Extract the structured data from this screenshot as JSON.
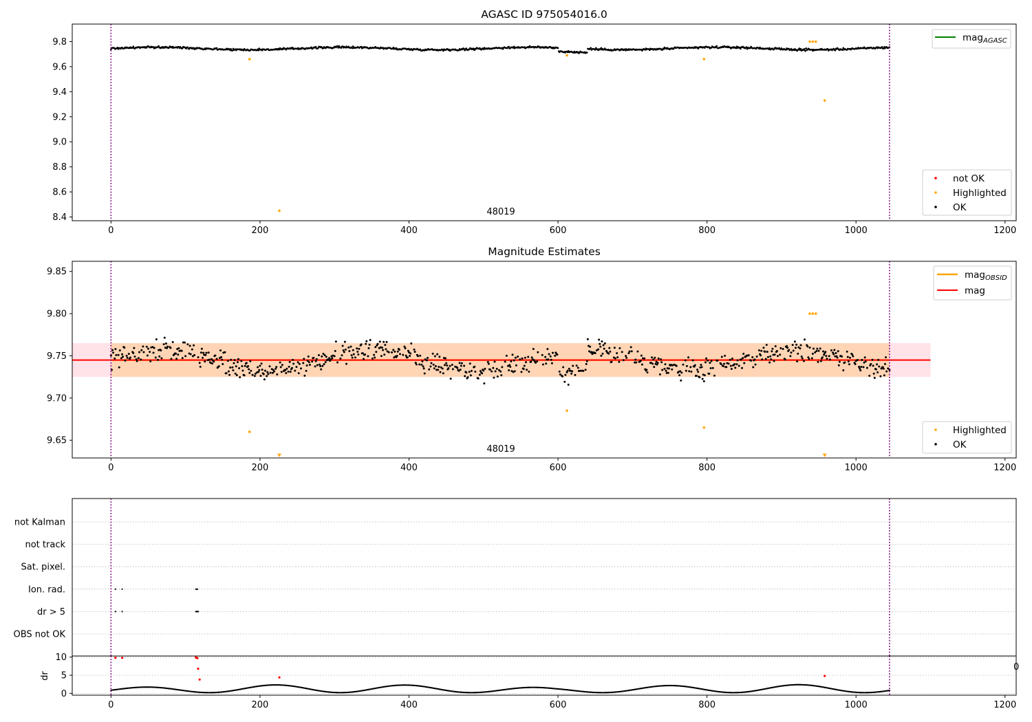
{
  "chart_data": [
    {
      "type": "scatter",
      "title": "AGASC ID 975054016.0",
      "xlim": [
        -52,
        1215
      ],
      "ylim": [
        8.37,
        9.94
      ],
      "xticks": [
        0,
        200,
        400,
        600,
        800,
        1000,
        1200
      ],
      "yticks": [
        8.4,
        8.6,
        8.8,
        9.0,
        9.2,
        9.4,
        9.6,
        9.8
      ],
      "ytick_labels": [
        "8.4",
        "8.6",
        "8.8",
        "9.0",
        "9.2",
        "9.4",
        "9.6",
        "9.8"
      ],
      "obsid_label": "48019",
      "obsid_label_x": 522,
      "vlines_x": [
        0,
        1045
      ],
      "series": [
        {
          "name": "not OK",
          "color": "#ff0000",
          "values": []
        },
        {
          "name": "Highlighted",
          "color": "#ffa500",
          "points": [
            [
              186,
              9.66
            ],
            [
              226,
              8.45
            ],
            [
              612,
              9.69
            ],
            [
              796,
              9.66
            ],
            [
              938,
              9.8
            ],
            [
              942,
              9.8
            ],
            [
              946,
              9.8
            ],
            [
              958,
              9.33
            ]
          ]
        },
        {
          "name": "OK",
          "color": "#000000",
          "band": {
            "x_start": 0,
            "x_end": 1045,
            "y_center": 9.745,
            "y_spread": 0.02
          }
        }
      ],
      "legend_upper": [
        {
          "label": "mag",
          "subscript": "AGASC",
          "color": "#008000"
        }
      ],
      "legend_lower": [
        {
          "label": "not OK",
          "color": "#ff0000"
        },
        {
          "label": "Highlighted",
          "color": "#ffa500"
        },
        {
          "label": "OK",
          "color": "#000000"
        }
      ]
    },
    {
      "type": "scatter",
      "title": "Magnitude Estimates",
      "xlim": [
        -52,
        1215
      ],
      "ylim": [
        9.629,
        9.862
      ],
      "xticks": [
        0,
        200,
        400,
        600,
        800,
        1000,
        1200
      ],
      "yticks": [
        9.65,
        9.7,
        9.75,
        9.8,
        9.85
      ],
      "ytick_labels": [
        "9.65",
        "9.70",
        "9.75",
        "9.80",
        "9.85"
      ],
      "obsid_label": "48019",
      "obsid_label_x": 522,
      "vlines_x": [
        0,
        1045
      ],
      "mag_line": {
        "y": 9.745,
        "color": "#ff0000"
      },
      "band": {
        "y_low": 9.725,
        "y_high": 9.765,
        "x_start": -52,
        "x_end": 1100,
        "color": "#ffc0cb"
      },
      "obsid_band": {
        "y_low": 9.725,
        "y_high": 9.765,
        "x_start": 0,
        "x_end": 1045,
        "color": "#ffa500"
      },
      "series": [
        {
          "name": "Highlighted",
          "color": "#ffa500",
          "points": [
            [
              186,
              9.66
            ],
            [
              612,
              9.685
            ],
            [
              796,
              9.665
            ],
            [
              938,
              9.8
            ],
            [
              942,
              9.8
            ],
            [
              946,
              9.8
            ]
          ]
        },
        {
          "name": "Highlighted (out of range)",
          "color": "#ffa500",
          "marker": "triangle-down",
          "points": [
            [
              226,
              9.63
            ],
            [
              958,
              9.63
            ]
          ]
        },
        {
          "name": "OK",
          "color": "#000000",
          "band": {
            "x_start": 0,
            "x_end": 1045,
            "y_center": 9.745,
            "y_spread": 0.02
          }
        }
      ],
      "legend_upper": [
        {
          "label": "mag",
          "subscript": "OBSID",
          "color": "#ffa500"
        },
        {
          "label": "mag",
          "subscript": "",
          "color": "#ff0000"
        }
      ],
      "legend_lower": [
        {
          "label": "Highlighted",
          "color": "#ffa500"
        },
        {
          "label": "OK",
          "color": "#000000"
        }
      ]
    },
    {
      "type": "scatter",
      "categories": [
        "OBS not OK",
        "dr > 5",
        "Ion. rad.",
        "Sat. pixel.",
        "not track",
        "not Kalman"
      ],
      "vlines_x": [
        0,
        1045
      ],
      "flag_points": {
        "Ion. rad.": [
          6,
          15,
          114,
          115,
          116
        ],
        "dr > 5": [
          6,
          15,
          114,
          115,
          116,
          117
        ]
      },
      "grid": true
    },
    {
      "type": "scatter",
      "ylabel": "dr",
      "xlim": [
        -52,
        1215
      ],
      "ylim": [
        -0.5,
        10.3
      ],
      "xticks": [
        0,
        200,
        400,
        600,
        800,
        1000,
        1200
      ],
      "yticks": [
        0,
        5,
        10
      ],
      "ytick_labels": [
        "0",
        "5",
        "10"
      ],
      "vlines_x": [
        0,
        1045
      ],
      "right_edge_label": "0",
      "series": [
        {
          "name": "dr > 5",
          "color": "#ff0000",
          "points": [
            [
              6,
              9.8
            ],
            [
              15,
              9.8
            ],
            [
              114,
              9.9
            ],
            [
              115,
              9.8
            ],
            [
              116,
              9.7
            ],
            [
              117,
              6.8
            ],
            [
              119,
              3.8
            ],
            [
              226,
              4.4
            ],
            [
              958,
              4.8
            ]
          ]
        },
        {
          "name": "dr",
          "color": "#000000",
          "range": [
            0.2,
            2.4
          ]
        }
      ]
    }
  ]
}
